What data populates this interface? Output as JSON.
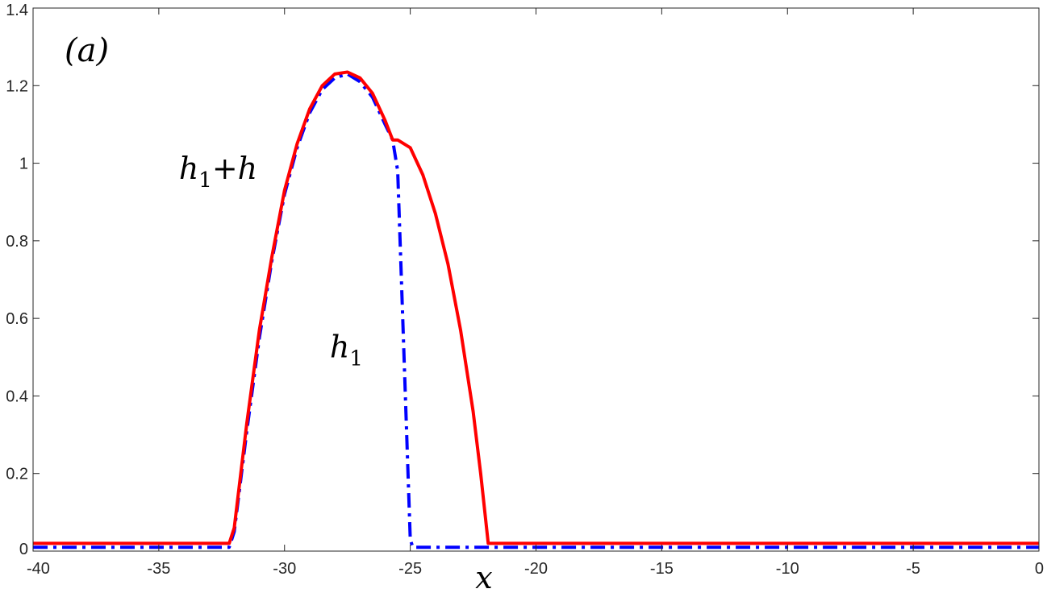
{
  "chart_data": {
    "type": "line",
    "panel_label": "(a)",
    "xlabel": "x",
    "ylabel": "",
    "xlim": [
      -40,
      0
    ],
    "ylim": [
      0,
      1.4
    ],
    "x_ticks": [
      -40,
      -35,
      -30,
      -25,
      -20,
      -15,
      -10,
      -5,
      0
    ],
    "x_tick_labels": [
      "-40",
      "-35",
      "-30",
      "-25",
      "-20",
      "-15",
      "-10",
      "-5",
      "0"
    ],
    "y_ticks": [
      0,
      0.2,
      0.4,
      0.6,
      0.8,
      1.0,
      1.2,
      1.4
    ],
    "y_tick_labels": [
      "0",
      "0.2",
      "0.4",
      "0.6",
      "0.8",
      "1",
      "1.2",
      "1.4"
    ],
    "grid": false,
    "box": true,
    "colors": {
      "h1_plus_h": "#ff0000",
      "h1": "#0000ff",
      "axes": "#262626"
    },
    "annotations": [
      {
        "name": "h1-plus-h",
        "base": "h",
        "sub": "1",
        "rest": "+h",
        "at": [
          -34.2,
          0.96
        ]
      },
      {
        "name": "h1",
        "base": "h",
        "sub": "1",
        "rest": "",
        "at": [
          -28.2,
          0.5
        ]
      }
    ],
    "series": [
      {
        "name": "h1+h",
        "style": "solid",
        "x": [
          -40,
          -32.2,
          -32.0,
          -31.5,
          -31.0,
          -30.5,
          -30.0,
          -29.5,
          -29.0,
          -28.5,
          -28.0,
          -27.5,
          -27.0,
          -26.5,
          -26.0,
          -25.7,
          -25.5,
          -25.0,
          -24.5,
          -24.0,
          -23.5,
          -23.0,
          -22.5,
          -22.2,
          -22.0,
          -21.9,
          0
        ],
        "y": [
          0.02,
          0.02,
          0.06,
          0.33,
          0.57,
          0.76,
          0.93,
          1.05,
          1.14,
          1.2,
          1.23,
          1.235,
          1.22,
          1.18,
          1.11,
          1.06,
          1.06,
          1.04,
          0.97,
          0.87,
          0.74,
          0.57,
          0.36,
          0.2,
          0.08,
          0.02,
          0.02
        ]
      },
      {
        "name": "h1",
        "style": "dashdot",
        "x": [
          -40,
          -32.2,
          -32.0,
          -31.5,
          -31.0,
          -30.5,
          -30.0,
          -29.5,
          -29.0,
          -28.5,
          -28.0,
          -27.5,
          -27.0,
          -26.5,
          -26.0,
          -25.7,
          -25.5,
          -25.0,
          -24.9,
          0
        ],
        "y": [
          0.01,
          0.01,
          0.05,
          0.31,
          0.55,
          0.75,
          0.92,
          1.04,
          1.13,
          1.19,
          1.22,
          1.23,
          1.21,
          1.17,
          1.1,
          1.06,
          0.98,
          0.03,
          0.01,
          0.01
        ]
      }
    ]
  }
}
